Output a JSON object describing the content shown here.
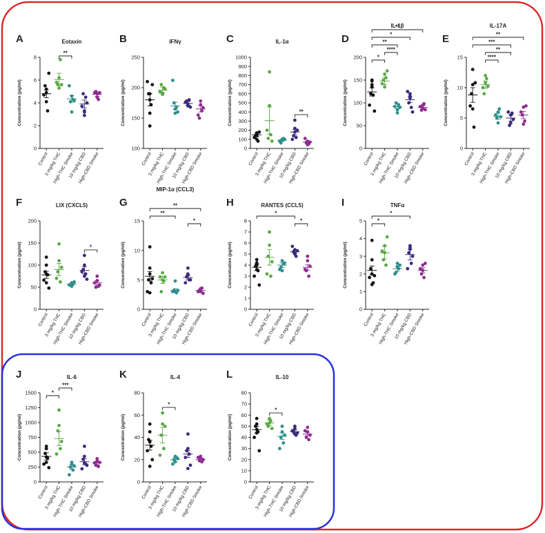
{
  "figure": {
    "colors": {
      "control": "#111111",
      "thc": "#5aa845",
      "thc_smoke": "#2f8f8a",
      "cbd": "#3b2a7a",
      "cbd_smoke": "#8e2c8f",
      "outer_frame": "#e0262a",
      "inner_frame": "#2334d6"
    }
  },
  "chart_data": [
    {
      "label": "A",
      "type": "scatter",
      "title": "Eotaxin",
      "ylabel": "Concentration (pg/ml)",
      "ylim": [
        0,
        8
      ],
      "yticks": [
        0,
        2,
        4,
        6,
        8
      ],
      "categories": [
        "Control",
        "3 mg/kg THC",
        "High-THC Smoke",
        "10 mg/kg CBD",
        "High-CBD Smoke"
      ],
      "means": [
        4.8,
        6.05,
        4.35,
        3.9,
        4.75
      ],
      "sems": [
        0.35,
        0.55,
        0.3,
        0.35,
        0.18
      ],
      "points": [
        [
          4.1,
          5.2,
          5.5,
          3.3,
          4.7,
          6.6,
          4.9
        ],
        [
          5.3,
          6.2,
          5.6,
          7.8,
          5.8,
          5.6
        ],
        [
          3.2,
          4.6,
          4.1,
          4.3,
          5.5,
          4.2
        ],
        [
          3.2,
          2.9,
          4.8,
          4.5,
          3.7,
          4.0,
          3.3
        ],
        [
          4.8,
          4.5,
          5.0,
          4.3,
          4.9,
          4.9
        ]
      ],
      "sig": [
        {
          "from": 1,
          "to": 2,
          "label": "**"
        }
      ]
    },
    {
      "label": "B",
      "type": "scatter",
      "title": "IFNγ",
      "ylabel": "Concentration (pg/ml)",
      "ylim": [
        100,
        250
      ],
      "yticks": [
        100,
        150,
        200,
        250
      ],
      "categories": [
        "Control",
        "3 mg/kg THC",
        "High-THC Smoke",
        "10 mg/kg CBD",
        "High-CBD Smoke"
      ],
      "means": [
        180,
        196,
        170,
        174,
        165
      ],
      "sems": [
        10,
        5,
        6,
        3,
        5
      ],
      "points": [
        [
          137,
          158,
          190,
          172,
          210,
          205,
          190,
          180
        ],
        [
          189,
          191,
          205,
          200,
          193,
          198
        ],
        [
          158,
          165,
          175,
          168,
          212,
          160
        ],
        [
          173,
          170,
          178,
          180,
          176,
          168
        ],
        [
          172,
          178,
          150,
          162,
          155,
          167
        ]
      ],
      "sig": []
    },
    {
      "label": "C",
      "type": "scatter",
      "title": "IL-1α",
      "ylabel": "Concentration (pg/ml)",
      "ylim": [
        0,
        1000
      ],
      "yticks": [
        0,
        100,
        200,
        300,
        400,
        500,
        600,
        700,
        800,
        900,
        1000
      ],
      "categories": [
        "Control",
        "3 mg/kg THC",
        "High-THC Smoke",
        "10 mg/kg CBD",
        "High-CBD Smoke"
      ],
      "means": [
        150,
        305,
        90,
        180,
        70
      ],
      "sems": [
        20,
        150,
        15,
        30,
        10
      ],
      "points": [
        [
          170,
          100,
          140,
          80,
          120,
          180,
          140,
          160
        ],
        [
          840,
          470,
          110,
          150,
          200,
          80
        ],
        [
          100,
          90,
          60,
          110,
          80,
          100
        ],
        [
          310,
          180,
          140,
          120,
          100,
          200,
          220
        ],
        [
          40,
          80,
          60,
          50,
          110,
          70
        ]
      ],
      "sig": [
        {
          "from": 3,
          "to": 4,
          "label": "**"
        }
      ]
    },
    {
      "label": "D",
      "type": "scatter",
      "title": "IL-1β",
      "ylabel": "Concentration (pg/ml)",
      "ylim": [
        0,
        200
      ],
      "yticks": [
        0,
        50,
        100,
        150,
        200
      ],
      "categories": [
        "Control",
        "3 mg/kg THC",
        "High-THC Smoke",
        "10 mg/kg CBD",
        "High-CBD Smoke"
      ],
      "means": [
        124,
        148,
        92,
        107,
        90
      ],
      "sems": [
        9,
        8,
        5,
        6,
        4
      ],
      "points": [
        [
          150,
          148,
          120,
          117,
          95,
          82,
          140,
          135
        ],
        [
          163,
          135,
          150,
          155,
          142,
          170
        ],
        [
          85,
          78,
          100,
          96,
          92,
          90
        ],
        [
          120,
          110,
          100,
          90,
          125,
          80,
          115
        ],
        [
          95,
          88,
          84,
          98,
          92,
          85
        ]
      ],
      "sig": [
        {
          "from": 0,
          "to": 1,
          "label": "*"
        },
        {
          "from": 1,
          "to": 2,
          "label": "****"
        },
        {
          "from": 0,
          "to": 2,
          "label": "**"
        },
        {
          "from": 0,
          "to": 3,
          "label": "*"
        },
        {
          "from": 0,
          "to": 4,
          "label": "**"
        }
      ]
    },
    {
      "label": "E",
      "type": "scatter",
      "title": "IL-17A",
      "ylabel": "Concentration (pg/ml)",
      "ylim": [
        0,
        15
      ],
      "yticks": [
        0,
        5,
        10,
        15
      ],
      "categories": [
        "Control",
        "3 mg/kg THC",
        "High-THC Smoke",
        "10 mg/kg CBD",
        "High-CBD Smoke"
      ],
      "means": [
        8.8,
        10.5,
        5.3,
        5.0,
        5.5
      ],
      "sems": [
        1.2,
        0.6,
        0.5,
        0.5,
        0.6
      ],
      "points": [
        [
          13,
          10.5,
          9.0,
          3.5,
          7.0,
          10.8,
          6.5
        ],
        [
          12.0,
          10.8,
          9.0,
          11.5,
          10.0,
          10.2
        ],
        [
          4.2,
          6.0,
          5.0,
          6.5,
          5.5,
          5.2
        ],
        [
          5.5,
          4.2,
          3.8,
          5.8,
          6.0,
          4.8
        ],
        [
          6.8,
          4.0,
          5.5,
          4.5,
          6.0,
          7.0
        ]
      ],
      "sig": [
        {
          "from": 1,
          "to": 2,
          "label": "****"
        },
        {
          "from": 1,
          "to": 3,
          "label": "**"
        },
        {
          "from": 0,
          "to": 3,
          "label": "***"
        },
        {
          "from": 0,
          "to": 4,
          "label": "**"
        }
      ]
    },
    {
      "label": "F",
      "type": "scatter",
      "title": "LIX (CXCL5)",
      "ylabel": "Concentration (pg/ml)",
      "ylim": [
        0,
        200
      ],
      "yticks": [
        0,
        50,
        100,
        150,
        200
      ],
      "categories": [
        "Control",
        "3 mg/kg THC",
        "High-THC Smoke",
        "10 mg/kg CBD",
        "High-CBD Smoke"
      ],
      "means": [
        78,
        90,
        57,
        88,
        60
      ],
      "sems": [
        8,
        14,
        3,
        8,
        5
      ],
      "points": [
        [
          118,
          100,
          85,
          78,
          66,
          48,
          60,
          80
        ],
        [
          148,
          110,
          85,
          62,
          70,
          95
        ],
        [
          52,
          60,
          55,
          58,
          55,
          62
        ],
        [
          122,
          100,
          90,
          80,
          85,
          68,
          75
        ],
        [
          75,
          65,
          50,
          52,
          60,
          55
        ]
      ],
      "sig": [
        {
          "from": 3,
          "to": 4,
          "label": "*"
        }
      ]
    },
    {
      "label": "G",
      "type": "scatter",
      "title": "MIP-1α (CCL3)",
      "ylabel": "Concentration (pg/ml)",
      "ylim": [
        0,
        15
      ],
      "yticks": [
        0,
        5,
        10,
        15
      ],
      "categories": [
        "Control",
        "3 mg/kg THC",
        "High-THC Smoke",
        "10 mg/kg CBD",
        "High-CBD Smoke"
      ],
      "means": [
        5.6,
        5.0,
        3.2,
        5.4,
        3.2
      ],
      "sems": [
        0.8,
        0.6,
        0.3,
        0.4,
        0.2
      ],
      "points": [
        [
          10.6,
          7.0,
          5.0,
          4.5,
          3.0,
          5.2,
          6.0,
          2.8
        ],
        [
          6.2,
          5.0,
          3.0,
          4.8,
          5.5,
          5.5
        ],
        [
          4.8,
          3.0,
          3.2,
          2.8,
          3.0,
          3.2
        ],
        [
          7.0,
          6.0,
          5.5,
          5.0,
          4.5,
          5.0,
          5.8
        ],
        [
          3.5,
          3.0,
          3.2,
          3.6,
          3.0,
          2.7
        ]
      ],
      "sig": [
        {
          "from": 0,
          "to": 2,
          "label": "**"
        },
        {
          "from": 3,
          "to": 4,
          "label": "*"
        },
        {
          "from": 0,
          "to": 4,
          "label": "**"
        }
      ]
    },
    {
      "label": "H",
      "type": "scatter",
      "title": "RANTES (CCL5)",
      "ylabel": "Concentration (pg/ml)",
      "ylim": [
        0,
        8
      ],
      "yticks": [
        0,
        1,
        2,
        3,
        4,
        5,
        6,
        7,
        8
      ],
      "categories": [
        "Control",
        "3 mg/kg THC",
        "High-THC Smoke",
        "10 mg/kg CBD",
        "High-CBD Smoke"
      ],
      "means": [
        3.8,
        4.7,
        4.0,
        5.2,
        3.8
      ],
      "sems": [
        0.3,
        0.7,
        0.2,
        0.15,
        0.25
      ],
      "points": [
        [
          4.5,
          4.2,
          3.9,
          3.5,
          3.0,
          2.2,
          4.0,
          3.6
        ],
        [
          7.0,
          5.8,
          4.8,
          3.0,
          3.2,
          4.3
        ],
        [
          3.5,
          4.4,
          3.8,
          4.1,
          3.6,
          4.2
        ],
        [
          5.0,
          5.4,
          5.2,
          4.8,
          5.7,
          5.3,
          5.1
        ],
        [
          4.8,
          4.4,
          3.5,
          3.0,
          3.6,
          3.9
        ]
      ],
      "sig": [
        {
          "from": 0,
          "to": 3,
          "label": "*"
        },
        {
          "from": 3,
          "to": 4,
          "label": "*"
        }
      ]
    },
    {
      "label": "I",
      "type": "scatter",
      "title": "TNFα",
      "ylabel": "Concentration (pg/ml)",
      "ylim": [
        0,
        5
      ],
      "yticks": [
        0,
        1,
        2,
        3,
        4,
        5
      ],
      "categories": [
        "Control",
        "3 mg/kg THC",
        "High-THC Smoke",
        "10 mg/kg CBD",
        "High-CBD Smoke"
      ],
      "means": [
        2.2,
        3.2,
        2.3,
        3.1,
        2.2
      ],
      "sems": [
        0.25,
        0.35,
        0.15,
        0.3,
        0.15
      ],
      "points": [
        [
          3.9,
          2.8,
          2.3,
          1.5,
          1.8,
          1.9,
          1.4,
          2.0
        ],
        [
          3.6,
          3.2,
          2.8,
          2.5,
          3.3,
          4.1
        ],
        [
          2.6,
          2.4,
          2.1,
          2.3,
          2.0,
          2.5
        ],
        [
          3.6,
          3.5,
          3.2,
          2.6,
          2.3,
          3.0,
          3.4
        ],
        [
          2.5,
          2.2,
          2.0,
          1.8,
          2.3,
          2.6
        ]
      ],
      "sig": [
        {
          "from": 0,
          "to": 1,
          "label": "*"
        },
        {
          "from": 0,
          "to": 3,
          "label": "*"
        }
      ]
    },
    {
      "label": "J",
      "type": "scatter",
      "title": "IL-6",
      "ylabel": "Concentration (pg/ml)",
      "ylim": [
        0,
        1500
      ],
      "yticks": [
        0,
        250,
        500,
        750,
        1000,
        1250,
        1500
      ],
      "categories": [
        "Control",
        "3 mg/kg THC",
        "High-THC Smoke",
        "10 mg/kg CBD",
        "High-CBD Smoke"
      ],
      "means": [
        430,
        730,
        250,
        340,
        320
      ],
      "sems": [
        60,
        120,
        40,
        50,
        30
      ],
      "points": [
        [
          600,
          560,
          480,
          400,
          300,
          240,
          420,
          330
        ],
        [
          1210,
          950,
          860,
          560,
          470,
          680
        ],
        [
          300,
          330,
          250,
          200,
          120,
          270
        ],
        [
          600,
          430,
          380,
          300,
          220,
          280,
          320
        ],
        [
          390,
          350,
          280,
          260,
          320,
          330
        ]
      ],
      "sig": [
        {
          "from": 0,
          "to": 1,
          "label": "*"
        },
        {
          "from": 1,
          "to": 2,
          "label": "***"
        }
      ]
    },
    {
      "label": "K",
      "type": "scatter",
      "title": "IL-4",
      "ylabel": "Concentration (pg/ml)",
      "ylim": [
        0,
        80
      ],
      "yticks": [
        0,
        20,
        40,
        60,
        80
      ],
      "categories": [
        "Control",
        "3 mg/kg THC",
        "High-THC Smoke",
        "10 mg/kg CBD",
        "High-CBD Smoke"
      ],
      "means": [
        33,
        42,
        20,
        25,
        20
      ],
      "sems": [
        4.5,
        7,
        2,
        3,
        1.5
      ],
      "points": [
        [
          52,
          45,
          38,
          32,
          28,
          20,
          14,
          36
        ],
        [
          62,
          52,
          42,
          30,
          24,
          50
        ],
        [
          23,
          18,
          20,
          22,
          16,
          21
        ],
        [
          43,
          30,
          28,
          25,
          22,
          15,
          12
        ],
        [
          23,
          21,
          19,
          18,
          22,
          20
        ]
      ],
      "sig": [
        {
          "from": 1,
          "to": 2,
          "label": "*"
        }
      ]
    },
    {
      "label": "L",
      "type": "scatter",
      "title": "IL-10",
      "ylabel": "Concentration (pg/ml)",
      "ylim": [
        0,
        80
      ],
      "yticks": [
        0,
        10,
        20,
        30,
        40,
        50,
        60,
        70,
        80
      ],
      "categories": [
        "Control",
        "3 mg/kg THC",
        "High-THC Smoke",
        "10 mg/kg CBD",
        "High-CBD Smoke"
      ],
      "means": [
        47,
        53,
        41,
        45,
        43
      ],
      "sems": [
        3,
        2.5,
        3,
        1.5,
        1.5
      ],
      "points": [
        [
          57,
          52,
          50,
          45,
          40,
          28,
          47,
          44
        ],
        [
          57,
          53,
          50,
          55,
          52,
          48
        ],
        [
          50,
          45,
          40,
          35,
          30,
          42
        ],
        [
          50,
          48,
          45,
          42,
          46,
          44,
          43
        ],
        [
          49,
          45,
          40,
          38,
          46,
          42
        ]
      ],
      "sig": [
        {
          "from": 1,
          "to": 2,
          "label": "*"
        }
      ]
    }
  ]
}
